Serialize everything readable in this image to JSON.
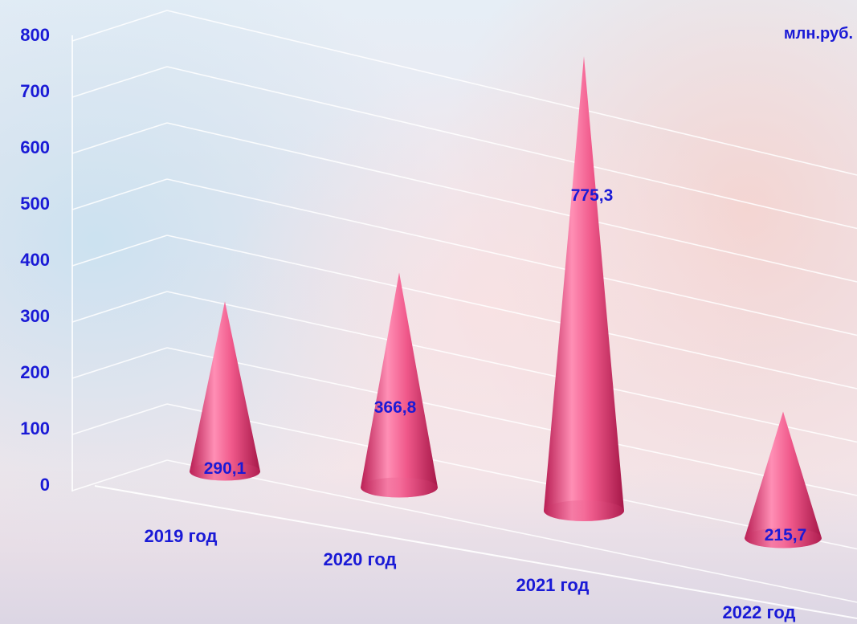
{
  "chart_data": {
    "type": "bar",
    "unit": "млн.руб.",
    "categories": [
      "2019 год",
      "2020 год",
      "2021 год",
      "2022 год"
    ],
    "values": [
      290.1,
      366.8,
      775.3,
      215.7
    ],
    "value_labels": [
      "290,1",
      "366,8",
      "775,3",
      "215,7"
    ],
    "yticks": [
      "0",
      "100",
      "200",
      "300",
      "400",
      "500",
      "600",
      "700",
      "800"
    ],
    "ylim": [
      0,
      800
    ],
    "grid": true,
    "colors": {
      "cone": "#e8507e",
      "label": "#1a1ad6"
    }
  }
}
